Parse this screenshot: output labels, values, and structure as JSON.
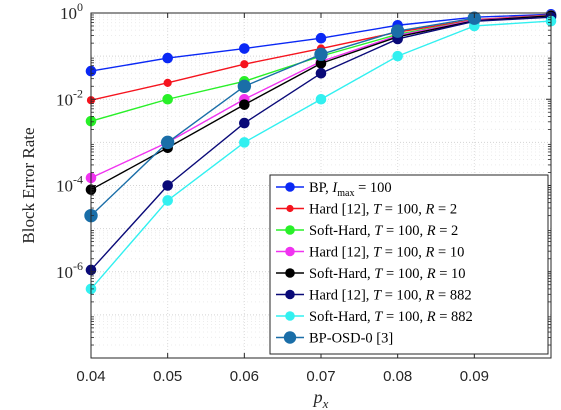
{
  "chart_data": {
    "type": "line",
    "xlabel_base": "p",
    "xlabel_sub": "x",
    "ylabel": "Block Error Rate",
    "xlim": [
      0.04,
      0.1
    ],
    "ylim": [
      1e-08,
      1
    ],
    "y_scale": "log",
    "grid": true,
    "legend_position": "bottom-right",
    "x_ticks": [
      "0.04",
      "0.05",
      "0.06",
      "0.07",
      "0.08",
      "0.09"
    ],
    "y_ticks": [
      {
        "base": "10",
        "exp": "0"
      },
      {
        "base": "10",
        "exp": "-2"
      },
      {
        "base": "10",
        "exp": "-4"
      },
      {
        "base": "10",
        "exp": "-6"
      }
    ],
    "series": [
      {
        "legend": [
          "BP, ",
          "I",
          "max",
          " = 100"
        ],
        "color": "#0a28f5",
        "marker_size": 4.8,
        "x": [
          0.04,
          0.05,
          0.06,
          0.07,
          0.08,
          0.09,
          0.1
        ],
        "y": [
          0.045,
          0.09,
          0.15,
          0.26,
          0.52,
          0.8,
          0.93
        ]
      },
      {
        "legend": [
          "Hard [12], ",
          "T",
          "",
          " = 100, ",
          "R",
          " = 2"
        ],
        "color": "#f5141e",
        "marker_size": 3.6,
        "x": [
          0.04,
          0.05,
          0.06,
          0.07,
          0.08,
          0.09,
          0.1
        ],
        "y": [
          0.0095,
          0.024,
          0.065,
          0.15,
          0.36,
          0.7,
          0.9
        ]
      },
      {
        "legend": [
          "Soft-Hard, ",
          "T",
          "",
          " = 100, ",
          "R",
          " = 2"
        ],
        "color": "#28f028",
        "marker_size": 4.8,
        "x": [
          0.04,
          0.05,
          0.06,
          0.07,
          0.08,
          0.09,
          0.1
        ],
        "y": [
          0.0031,
          0.01,
          0.026,
          0.1,
          0.32,
          0.68,
          0.88
        ]
      },
      {
        "legend": [
          "Hard [12], ",
          "T",
          "",
          " = 100, ",
          "R",
          " = 10"
        ],
        "color": "#f032f0",
        "marker_size": 4.8,
        "x": [
          0.04,
          0.05,
          0.06,
          0.07,
          0.08,
          0.09,
          0.1
        ],
        "y": [
          0.00015,
          0.001,
          0.01,
          0.075,
          0.3,
          0.68,
          0.87
        ]
      },
      {
        "legend": [
          "Soft-Hard, ",
          "T",
          "",
          " = 100, ",
          "R",
          " = 10"
        ],
        "color": "#000000",
        "marker_size": 4.8,
        "x": [
          0.04,
          0.05,
          0.06,
          0.07,
          0.08,
          0.09,
          0.1
        ],
        "y": [
          8e-05,
          0.00075,
          0.0075,
          0.068,
          0.28,
          0.66,
          0.86
        ]
      },
      {
        "legend": [
          "Hard [12], ",
          "T",
          "",
          " = 100, ",
          "R",
          " = 882"
        ],
        "color": "#0a0a78",
        "marker_size": 4.8,
        "x": [
          0.04,
          0.05,
          0.06,
          0.07,
          0.08,
          0.09,
          0.1
        ],
        "y": [
          1.1e-06,
          0.0001,
          0.0028,
          0.04,
          0.25,
          0.64,
          0.8
        ]
      },
      {
        "legend": [
          "Soft-Hard, ",
          "T",
          "",
          " = 100, ",
          "R",
          " = 882"
        ],
        "color": "#32f0f0",
        "marker_size": 4.8,
        "x": [
          0.04,
          0.05,
          0.06,
          0.07,
          0.08,
          0.09,
          0.1
        ],
        "y": [
          4e-07,
          4.5e-05,
          0.001,
          0.01,
          0.1,
          0.5,
          0.65
        ]
      },
      {
        "legend": [
          "BP-OSD-0 [3]"
        ],
        "color": "#1a6ea8",
        "marker_size": 6.2,
        "x": [
          0.04,
          0.05,
          0.06,
          0.07,
          0.08,
          0.09
        ],
        "y": [
          2e-05,
          0.001,
          0.02,
          0.11,
          0.38,
          0.76
        ]
      }
    ]
  }
}
